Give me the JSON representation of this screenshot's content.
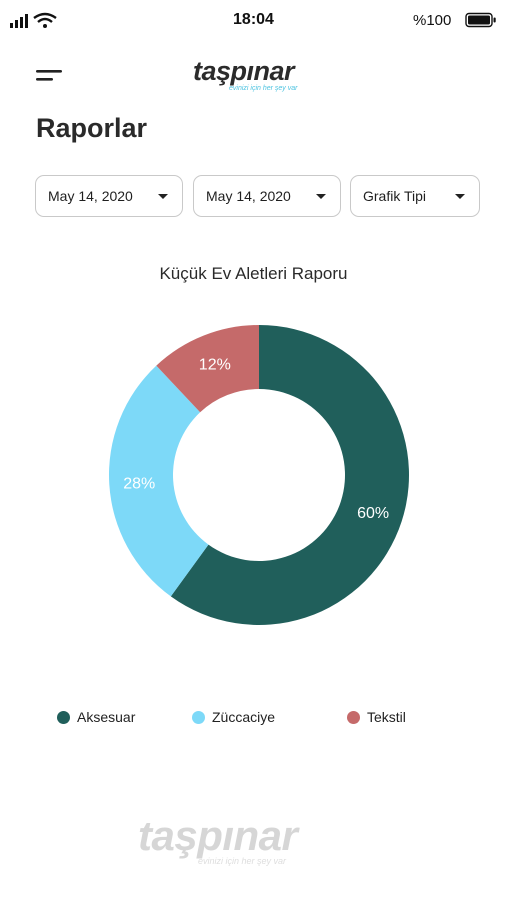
{
  "status_bar": {
    "time": "18:04",
    "battery_label": "%100"
  },
  "header": {
    "logo_text": "taşpınar",
    "logo_tagline": "evinizi için her şey var"
  },
  "page": {
    "title": "Raporlar"
  },
  "filters": {
    "start_date": "May 14, 2020",
    "end_date": "May 14, 2020",
    "chart_type": "Grafik Tipi"
  },
  "watermark": {
    "text": "taşpınar",
    "tagline": "evinizi için her şey var"
  },
  "colors": {
    "accent_dark_teal": "#205f5b",
    "accent_light_blue": "#7dd9f8",
    "accent_rose": "#c56a6a"
  },
  "chart_data": {
    "type": "pie",
    "title": "Küçük Ev Aletleri Raporu",
    "donut": true,
    "legend_position": "bottom",
    "slices": [
      {
        "label": "Aksesuar",
        "value": 60,
        "display": "60%",
        "color": "#205f5b"
      },
      {
        "label": "Züccaciye",
        "value": 28,
        "display": "28%",
        "color": "#7dd9f8"
      },
      {
        "label": "Tekstil",
        "value": 12,
        "display": "12%",
        "color": "#c56a6a"
      }
    ]
  }
}
